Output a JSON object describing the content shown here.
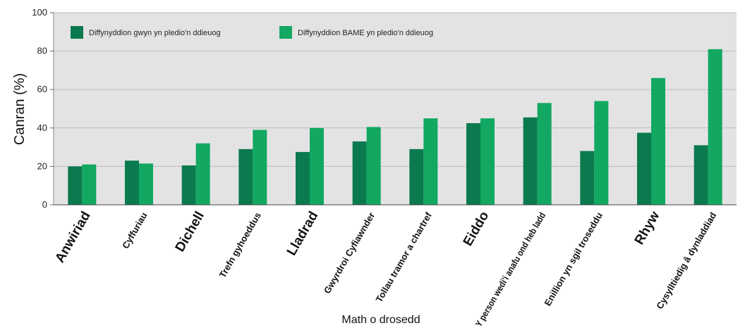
{
  "chart_data": {
    "type": "bar",
    "title": "",
    "xlabel": "Math o drosedd",
    "ylabel": "Canran (%)",
    "ylim": [
      0,
      100
    ],
    "yticks": [
      0,
      20,
      40,
      60,
      80,
      100
    ],
    "grid": true,
    "legend_position": "top-left",
    "categories": [
      "Anwiriad",
      "Cyffuriau",
      "Dichell",
      "Trefn gyhoeddus",
      "Lladrad",
      "Gwyrdroi Cyfiawnder",
      "Tollau tramor a chartref",
      "Eiddo",
      "Y person wedi'i anafu ond heb ladd",
      "Enillion yn sgil troseddu",
      "Rhyw",
      "Cysylltiedig â dynladdiad"
    ],
    "series": [
      {
        "name": "Diffynyddion gwyn yn pledio'n ddieuog",
        "color": "#0b7a4e",
        "values": [
          20,
          23,
          20.5,
          29,
          27.5,
          33,
          29,
          42.5,
          45.5,
          28,
          37.5,
          31
        ]
      },
      {
        "name": "Diffynyddion BAME yn pledio'n ddieuog",
        "color": "#12a862",
        "values": [
          21,
          21.5,
          32,
          39,
          40,
          40.5,
          45,
          45,
          53,
          54,
          66,
          81
        ]
      }
    ],
    "large_label_indices": [
      0,
      2,
      4,
      7,
      10
    ]
  }
}
